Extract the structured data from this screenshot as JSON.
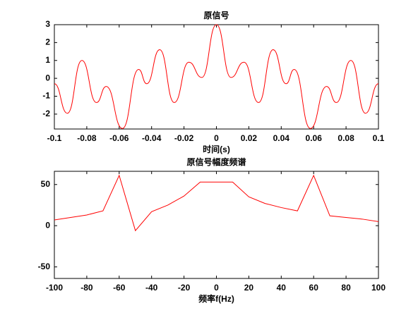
{
  "chart_data": [
    {
      "type": "line",
      "title": "原信号",
      "x_label": "时间(s)",
      "curve": "smooth",
      "x": [
        -0.1,
        -0.092,
        -0.083,
        -0.074,
        -0.068,
        -0.058,
        -0.048,
        -0.043,
        -0.035,
        -0.026,
        -0.017,
        -0.009,
        0,
        0.009,
        0.017,
        0.026,
        0.035,
        0.043,
        0.048,
        0.058,
        0.068,
        0.074,
        0.083,
        0.092,
        0.1
      ],
      "series": [
        {
          "color": "#ff0000",
          "values": [
            -0.3,
            -1.95,
            1.0,
            -1.35,
            -0.45,
            -2.8,
            0.5,
            -0.3,
            1.6,
            -1.35,
            0.9,
            0.05,
            3,
            0.05,
            0.9,
            -1.35,
            1.6,
            -0.3,
            0.5,
            -2.8,
            -0.45,
            -1.35,
            1.0,
            -1.95,
            -0.3
          ]
        }
      ],
      "xlim": [
        -0.1,
        0.1
      ],
      "xticks": [
        -0.1,
        -0.08,
        -0.06,
        -0.04,
        -0.02,
        0,
        0.02,
        0.04,
        0.06,
        0.08,
        0.1
      ],
      "ylim": [
        -2.83,
        3
      ],
      "yticks": [
        -2,
        -1,
        0,
        1,
        2,
        3
      ]
    },
    {
      "type": "line",
      "title": "原信号幅度频谱",
      "x_label": "频率f(Hz)",
      "curve": "straight",
      "x": [
        -100,
        -90,
        -80,
        -70,
        -60,
        -50,
        -40,
        -30,
        -20,
        -10,
        0,
        10,
        20,
        30,
        40,
        50,
        60,
        70,
        80,
        90,
        100
      ],
      "series": [
        {
          "color": "#ff0000",
          "values": [
            7,
            10,
            13,
            18,
            61,
            -6,
            17,
            25,
            36,
            53,
            53,
            53,
            35,
            27,
            22,
            18,
            61,
            12,
            10,
            8,
            5
          ]
        }
      ],
      "xlim": [
        -100,
        100
      ],
      "xticks": [
        -100,
        -80,
        -60,
        -40,
        -20,
        0,
        20,
        40,
        60,
        80,
        100
      ],
      "ylim": [
        -64,
        66
      ],
      "yticks": [
        -50,
        0,
        50
      ]
    }
  ]
}
